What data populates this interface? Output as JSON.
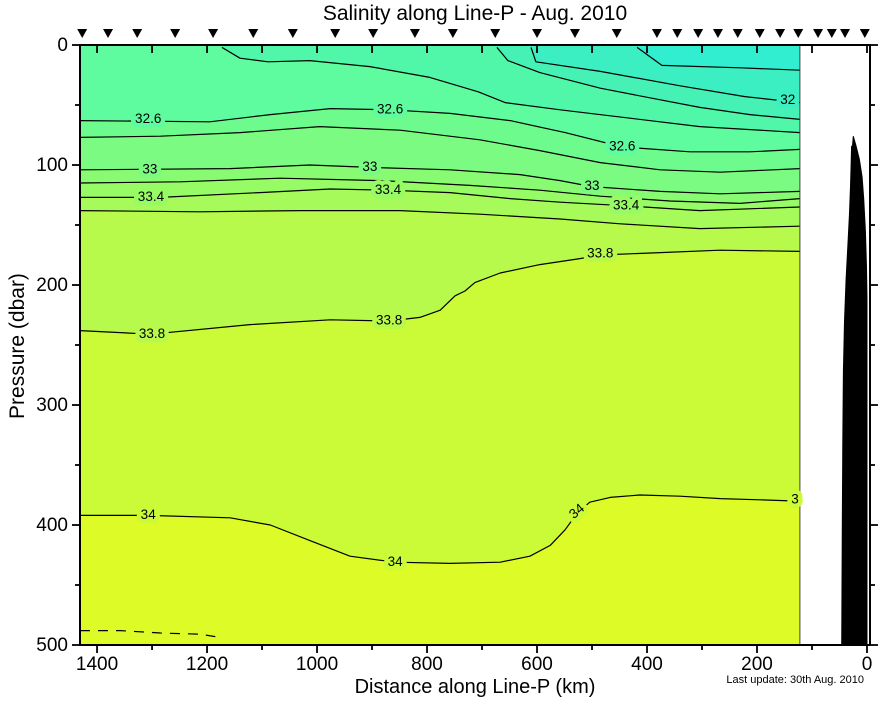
{
  "title": "Salinity along Line-P - Aug. 2010",
  "footnote": "Last update: 30th Aug. 2010",
  "chart_data": {
    "type": "contour-section",
    "title": "Salinity along Line-P - Aug. 2010",
    "xlabel": "Distance along Line-P (km)",
    "ylabel": "Pressure (dbar)",
    "x_axis": {
      "min": 0,
      "max": 1431,
      "reversed": true,
      "major_ticks": [
        1400,
        1200,
        1000,
        800,
        600,
        400,
        200,
        0
      ],
      "minor_tick_step": 100
    },
    "y_axis": {
      "min": 0,
      "max": 500,
      "inverted": true,
      "major_ticks": [
        0,
        100,
        200,
        300,
        400,
        500
      ],
      "minor_tick_step": 50
    },
    "grid": false,
    "data_extent_km": [
      1431,
      122
    ],
    "contour_interval": 0.2,
    "station_km": [
      1427,
      1380,
      1327,
      1258,
      1189,
      1116,
      1044,
      967,
      898,
      822,
      753,
      676,
      600,
      531,
      455,
      382,
      345,
      307,
      271,
      235,
      195,
      158,
      125,
      89,
      64,
      40,
      4
    ],
    "base_band": {
      "range": "32.4-32.6",
      "color": "#5EFC9E"
    },
    "contours": [
      {
        "level": 31.8,
        "fill_mode": "above",
        "fill": "#30EECF",
        "style": "solid",
        "points": [
          [
            418,
            2
          ],
          [
            373,
            17
          ],
          [
            231,
            19
          ],
          [
            122,
            21
          ]
        ]
      },
      {
        "level": 32.0,
        "fill_mode": "above",
        "fill": "#3BEFC2",
        "style": "solid",
        "points": [
          [
            611,
            2
          ],
          [
            602,
            14
          ],
          [
            485,
            22
          ],
          [
            340,
            34
          ],
          [
            222,
            43
          ],
          [
            122,
            48
          ]
        ]
      },
      {
        "level": 32.2,
        "fill_mode": "above",
        "fill": "#45F1B5",
        "style": "solid",
        "points": [
          [
            673,
            2
          ],
          [
            653,
            13
          ],
          [
            595,
            23
          ],
          [
            485,
            36
          ],
          [
            395,
            44
          ],
          [
            304,
            52
          ],
          [
            213,
            58
          ],
          [
            122,
            62
          ]
        ]
      },
      {
        "level": 32.4,
        "fill_mode": "above",
        "fill": "#50F7A9",
        "style": "solid",
        "points": [
          [
            1173,
            2
          ],
          [
            1140,
            11
          ],
          [
            1089,
            14
          ],
          [
            1013,
            13
          ],
          [
            904,
            18
          ],
          [
            795,
            27
          ],
          [
            707,
            39
          ],
          [
            658,
            48
          ],
          [
            558,
            54
          ],
          [
            431,
            61
          ],
          [
            304,
            68
          ],
          [
            122,
            73
          ]
        ]
      },
      {
        "level": 32.6,
        "fill_mode": "below",
        "fill": "#6DFB8E",
        "style": "solid",
        "points": [
          [
            1431,
            63
          ],
          [
            1195,
            64
          ],
          [
            1085,
            58
          ],
          [
            976,
            53
          ],
          [
            867,
            54
          ],
          [
            758,
            57
          ],
          [
            649,
            63
          ],
          [
            549,
            73
          ],
          [
            445,
            85
          ],
          [
            322,
            89
          ],
          [
            213,
            89
          ],
          [
            122,
            87
          ]
        ]
      },
      {
        "level": 32.8,
        "fill_mode": "below",
        "fill": "#7BFB81",
        "style": "solid",
        "points": [
          [
            1431,
            77
          ],
          [
            1285,
            76
          ],
          [
            1140,
            73
          ],
          [
            995,
            68
          ],
          [
            849,
            71
          ],
          [
            704,
            79
          ],
          [
            595,
            88
          ],
          [
            485,
            98
          ],
          [
            376,
            104
          ],
          [
            267,
            106
          ],
          [
            122,
            103
          ]
        ]
      },
      {
        "level": 33.0,
        "fill_mode": "below",
        "fill": "#89FB73",
        "style": "solid",
        "points": [
          [
            1431,
            104
          ],
          [
            1158,
            103
          ],
          [
            1013,
            100
          ],
          [
            904,
            102
          ],
          [
            758,
            104
          ],
          [
            631,
            108
          ],
          [
            558,
            113
          ],
          [
            500,
            118
          ],
          [
            376,
            122
          ],
          [
            267,
            124
          ],
          [
            122,
            122
          ]
        ]
      },
      {
        "level": 33.2,
        "fill_mode": "below",
        "fill": "#97FB66",
        "style": "solid",
        "points": [
          [
            1431,
            115
          ],
          [
            1249,
            114
          ],
          [
            1067,
            111
          ],
          [
            885,
            113
          ],
          [
            722,
            117
          ],
          [
            595,
            121
          ],
          [
            485,
            126
          ],
          [
            358,
            130
          ],
          [
            231,
            132
          ],
          [
            122,
            128
          ]
        ]
      },
      {
        "level": 33.4,
        "fill_mode": "below",
        "fill": "#A6FA59",
        "style": "solid",
        "points": [
          [
            1431,
            127
          ],
          [
            1285,
            127
          ],
          [
            1104,
            123
          ],
          [
            976,
            120
          ],
          [
            871,
            121
          ],
          [
            758,
            123
          ],
          [
            649,
            128
          ],
          [
            558,
            131
          ],
          [
            438,
            134
          ],
          [
            304,
            138
          ],
          [
            122,
            135
          ]
        ]
      },
      {
        "level": 33.6,
        "fill_mode": "below",
        "fill": "#B7FA4B",
        "style": "solid",
        "points": [
          [
            1431,
            138
          ],
          [
            1213,
            139
          ],
          [
            1031,
            138
          ],
          [
            849,
            138
          ],
          [
            704,
            141
          ],
          [
            558,
            145
          ],
          [
            449,
            149
          ],
          [
            304,
            153
          ],
          [
            122,
            151
          ]
        ]
      },
      {
        "level": 33.8,
        "fill_mode": "below",
        "fill": "#CBFA37",
        "style": "solid",
        "points": [
          [
            1431,
            238
          ],
          [
            1302,
            241
          ],
          [
            1122,
            233
          ],
          [
            976,
            229
          ],
          [
            869,
            230
          ],
          [
            813,
            227
          ],
          [
            776,
            221
          ],
          [
            749,
            209
          ],
          [
            731,
            205
          ],
          [
            713,
            198
          ],
          [
            667,
            190
          ],
          [
            595,
            183
          ],
          [
            522,
            178
          ],
          [
            485,
            175
          ],
          [
            376,
            173
          ],
          [
            267,
            171
          ],
          [
            122,
            172
          ]
        ]
      },
      {
        "level": 34.0,
        "fill_mode": "below",
        "fill": "#DDFB26",
        "style": "solid",
        "points": [
          [
            1431,
            392
          ],
          [
            1307,
            392
          ],
          [
            1158,
            394
          ],
          [
            1085,
            400
          ],
          [
            1013,
            413
          ],
          [
            940,
            426
          ],
          [
            858,
            431
          ],
          [
            758,
            432
          ],
          [
            667,
            431
          ],
          [
            613,
            426
          ],
          [
            576,
            417
          ],
          [
            549,
            404
          ],
          [
            527,
            390
          ],
          [
            504,
            381
          ],
          [
            467,
            377
          ],
          [
            413,
            375
          ],
          [
            340,
            376
          ],
          [
            267,
            378
          ],
          [
            195,
            379
          ],
          [
            133,
            380
          ],
          [
            122,
            380
          ]
        ]
      },
      {
        "level": 34.2,
        "fill_mode": "none",
        "fill": null,
        "style": "dashed",
        "points": [
          [
            1431,
            488
          ],
          [
            1358,
            488
          ],
          [
            1285,
            490
          ],
          [
            1213,
            491
          ],
          [
            1185,
            493
          ]
        ]
      }
    ],
    "contour_labels": [
      {
        "text": "32",
        "km": 144,
        "dbar": 46,
        "rot": 0,
        "halo": "#3BEFC2"
      },
      {
        "text": "32.6",
        "km": 1307,
        "dbar": 62,
        "rot": 0,
        "halo": "#5EFC9E"
      },
      {
        "text": "32.6",
        "km": 867,
        "dbar": 54,
        "rot": 0,
        "halo": "#5EFC9E"
      },
      {
        "text": "32.6",
        "km": 445,
        "dbar": 85,
        "rot": 0,
        "halo": "#5EFC9E"
      },
      {
        "text": "33",
        "km": 1304,
        "dbar": 104,
        "rot": 0,
        "halo": "#7BFB81"
      },
      {
        "text": "33",
        "km": 904,
        "dbar": 102,
        "rot": 0,
        "halo": "#7BFB81"
      },
      {
        "text": "33",
        "km": 500,
        "dbar": 118,
        "rot": 0,
        "halo": "#7BFB81"
      },
      {
        "text": "33.4",
        "km": 1302,
        "dbar": 127,
        "rot": 0,
        "halo": "#97FB66"
      },
      {
        "text": "33.4",
        "km": 871,
        "dbar": 121,
        "rot": 0,
        "halo": "#97FB66"
      },
      {
        "text": "33.4",
        "km": 438,
        "dbar": 134,
        "rot": 0,
        "halo": "#97FB66"
      },
      {
        "text": "33.8",
        "km": 1300,
        "dbar": 241,
        "rot": 0,
        "halo": "#B7FA4B"
      },
      {
        "text": "33.8",
        "km": 869,
        "dbar": 230,
        "rot": 0,
        "halo": "#B7FA4B"
      },
      {
        "text": "33.8",
        "km": 485,
        "dbar": 174,
        "rot": 0,
        "halo": "#B7FA4B"
      },
      {
        "text": "34",
        "km": 1307,
        "dbar": 392,
        "rot": 0,
        "halo": "#CBFA37"
      },
      {
        "text": "34",
        "km": 858,
        "dbar": 431,
        "rot": 0,
        "halo": "#CBFA37"
      },
      {
        "text": "34",
        "km": 527,
        "dbar": 389,
        "rot": -40,
        "halo": "#CBFA37"
      },
      {
        "text": "3",
        "km": 131,
        "dbar": 379,
        "rot": 0,
        "halo": "#CBFA37"
      }
    ],
    "bathymetry_km_dbar": [
      [
        28,
        84
      ],
      [
        27,
        87
      ],
      [
        25,
        76
      ],
      [
        20,
        84
      ],
      [
        14,
        95
      ],
      [
        9,
        110
      ],
      [
        6,
        128
      ],
      [
        3,
        155
      ],
      [
        1,
        185
      ],
      [
        0,
        212
      ],
      [
        0,
        500
      ],
      [
        46,
        500
      ],
      [
        45,
        400
      ],
      [
        44,
        330
      ],
      [
        43,
        272
      ],
      [
        41,
        230
      ],
      [
        38,
        195
      ],
      [
        35,
        168
      ],
      [
        32,
        142
      ],
      [
        30,
        118
      ],
      [
        29,
        100
      ]
    ],
    "colors": {
      "contour_line": "#000000",
      "bathymetry": "#000000",
      "frame": "#000000",
      "station_marker": "#000000"
    }
  }
}
